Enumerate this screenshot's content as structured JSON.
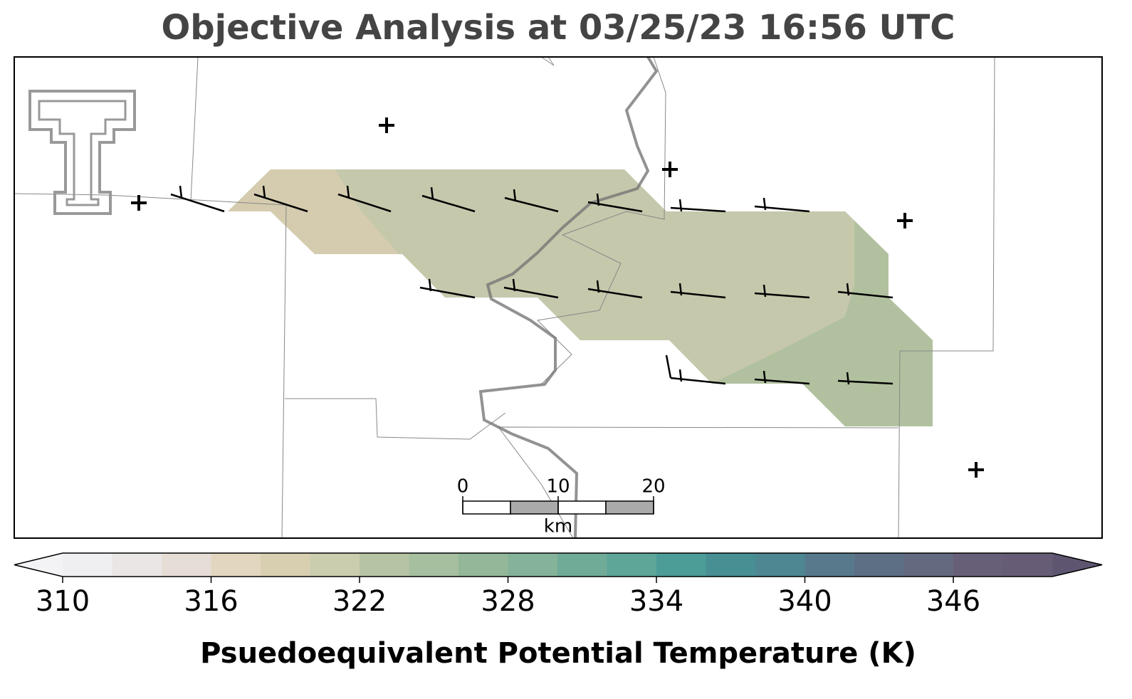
{
  "title": "Objective Analysis at 03/25/23 16:56 UTC",
  "scalebar": {
    "ticks": [
      0,
      10,
      20
    ],
    "unit": "km"
  },
  "colorbar": {
    "label": "Psuedoequivalent Potential Temperature (K)",
    "lim": [
      310,
      350
    ],
    "ticks": [
      310,
      316,
      322,
      328,
      334,
      340,
      346
    ],
    "under_color": "#f3f2f5",
    "over_color": "#5e5670",
    "colors": [
      "#efeef0",
      "#ebe6e6",
      "#e6ddd6",
      "#e3d6bf",
      "#d8cfb1",
      "#cacdae",
      "#b7c4a4",
      "#a5bf9f",
      "#93b798",
      "#84b39a",
      "#70ab97",
      "#5ea698",
      "#4c9c98",
      "#488f94",
      "#4e8791",
      "#57798b",
      "#5d6f85",
      "#63697f",
      "#675f78",
      "#675c75"
    ]
  }
}
